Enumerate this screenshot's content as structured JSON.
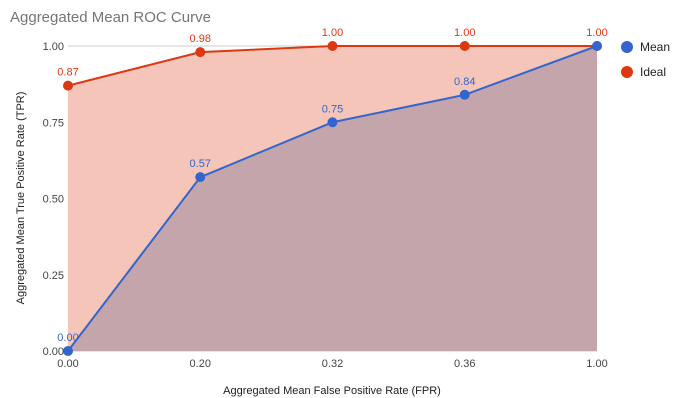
{
  "chart_data": {
    "type": "area",
    "title": "Aggregated Mean ROC Curve",
    "xlabel": "Aggregated Mean False Positive Rate (FPR)",
    "ylabel": "Aggregated Mean True Positive Rate (TPR)",
    "categories": [
      "0.00",
      "0.20",
      "0.32",
      "0.36",
      "1.00"
    ],
    "ylim": [
      0,
      1
    ],
    "yticks": [
      "0.00",
      "0.25",
      "0.50",
      "0.75",
      "1.00"
    ],
    "grid": true,
    "legend_position": "right",
    "series": [
      {
        "name": "Mean",
        "color": "#3366cc",
        "fill": "#c5a5ac",
        "values": [
          0.0,
          0.57,
          0.75,
          0.84,
          1.0
        ],
        "labels": [
          "0.00",
          "0.57",
          "0.75",
          "0.84",
          ""
        ]
      },
      {
        "name": "Ideal",
        "color": "#dc3912",
        "fill": "#f4c5b8",
        "values": [
          0.87,
          0.98,
          1.0,
          1.0,
          1.0
        ],
        "labels": [
          "0.87",
          "0.98",
          "1.00",
          "1.00",
          "1.00"
        ]
      }
    ]
  }
}
